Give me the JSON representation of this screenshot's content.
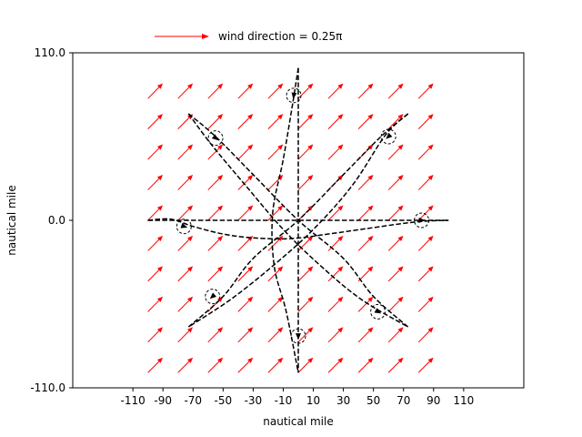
{
  "chart_data": {
    "type": "quiver",
    "title": "",
    "xlabel": "nautical mile",
    "ylabel": "nautical mile",
    "xlim": [
      -150,
      150
    ],
    "ylim": [
      -110,
      110
    ],
    "x_ticks": [
      -110,
      -90,
      -70,
      -50,
      -30,
      -10,
      10,
      30,
      50,
      70,
      90,
      110
    ],
    "x_tick_labels": [
      "-110",
      "-90",
      "-70",
      "-50",
      "-30",
      "-10",
      "10",
      "30",
      "50",
      "70",
      "90",
      "110"
    ],
    "y_ticks": [
      110,
      0,
      -110
    ],
    "y_tick_labels": [
      "110.0",
      "0.0",
      "-110.0"
    ],
    "grid": false,
    "legend": {
      "placement": "top-left, above axes",
      "entries": [
        "wind direction = 0.25π"
      ]
    },
    "wind_field": {
      "angle_pi": 0.25,
      "x": [
        -100,
        -80,
        -60,
        -40,
        -20,
        0,
        20,
        40,
        60,
        80
      ],
      "y": [
        -100,
        -80,
        -60,
        -40,
        -20,
        0,
        20,
        40,
        60,
        80
      ],
      "arrow_length": 14,
      "color": "#ff0000"
    },
    "series": [
      {
        "style": "dashed",
        "color": "#000000",
        "curve_points": [
          [
            -100,
            0
          ],
          [
            -85,
            0.8
          ],
          [
            -70,
            -4
          ],
          [
            -50,
            -9
          ],
          [
            -30,
            -11.5
          ],
          [
            -5,
            -12
          ],
          [
            20,
            -9
          ],
          [
            45,
            -5.5
          ],
          [
            70,
            -2
          ],
          [
            85,
            -0.5
          ],
          [
            100,
            0
          ]
        ],
        "marker": [
          -76,
          -4
        ]
      },
      {
        "style": "dashed",
        "color": "#000000",
        "curve_points": [
          [
            -100,
            0
          ],
          [
            -80,
            0
          ],
          [
            -60,
            0
          ],
          [
            -40,
            0
          ],
          [
            -20,
            0
          ],
          [
            0,
            0
          ],
          [
            20,
            0
          ],
          [
            40,
            0
          ],
          [
            60,
            0
          ],
          [
            80,
            0
          ],
          [
            100,
            0
          ]
        ],
        "marker": [
          82,
          0
        ]
      },
      {
        "style": "dashed",
        "color": "#000000",
        "curve_points": [
          [
            0,
            100
          ],
          [
            -4,
            75
          ],
          [
            -10,
            40
          ],
          [
            -17,
            5
          ],
          [
            -16,
            -30
          ],
          [
            -8,
            -60
          ],
          [
            0,
            -100
          ]
        ],
        "marker": [
          -3,
          82
        ]
      },
      {
        "style": "dashed",
        "color": "#000000",
        "curve_points": [
          [
            0,
            100
          ],
          [
            0,
            50
          ],
          [
            0,
            0
          ],
          [
            0,
            -50
          ],
          [
            0,
            -100
          ]
        ],
        "marker": [
          0,
          -76
        ]
      },
      {
        "style": "dashed",
        "color": "#000000",
        "curve_points": [
          [
            -73,
            70
          ],
          [
            -55,
            55
          ],
          [
            -30,
            30
          ],
          [
            0,
            0
          ],
          [
            30,
            -25
          ],
          [
            50,
            -50
          ],
          [
            73,
            -70
          ]
        ],
        "marker": [
          -55,
          54
        ]
      },
      {
        "style": "dashed",
        "color": "#000000",
        "curve_points": [
          [
            -73,
            70
          ],
          [
            -58,
            50
          ],
          [
            -36,
            24
          ],
          [
            -10,
            -6
          ],
          [
            15,
            -30
          ],
          [
            42,
            -52
          ],
          [
            73,
            -70
          ]
        ],
        "marker": [
          53,
          -60
        ]
      },
      {
        "style": "dashed",
        "color": "#000000",
        "curve_points": [
          [
            73,
            70
          ],
          [
            55,
            55
          ],
          [
            30,
            30
          ],
          [
            0,
            0
          ],
          [
            -30,
            -25
          ],
          [
            -50,
            -50
          ],
          [
            -73,
            -70
          ]
        ],
        "marker": [
          -57,
          -50
        ]
      },
      {
        "style": "dashed",
        "color": "#000000",
        "curve_points": [
          [
            73,
            70
          ],
          [
            58,
            56
          ],
          [
            36,
            23
          ],
          [
            10,
            -6
          ],
          [
            -17,
            -30
          ],
          [
            -45,
            -52
          ],
          [
            -73,
            -70
          ]
        ],
        "marker": [
          60,
          55
        ]
      }
    ]
  }
}
